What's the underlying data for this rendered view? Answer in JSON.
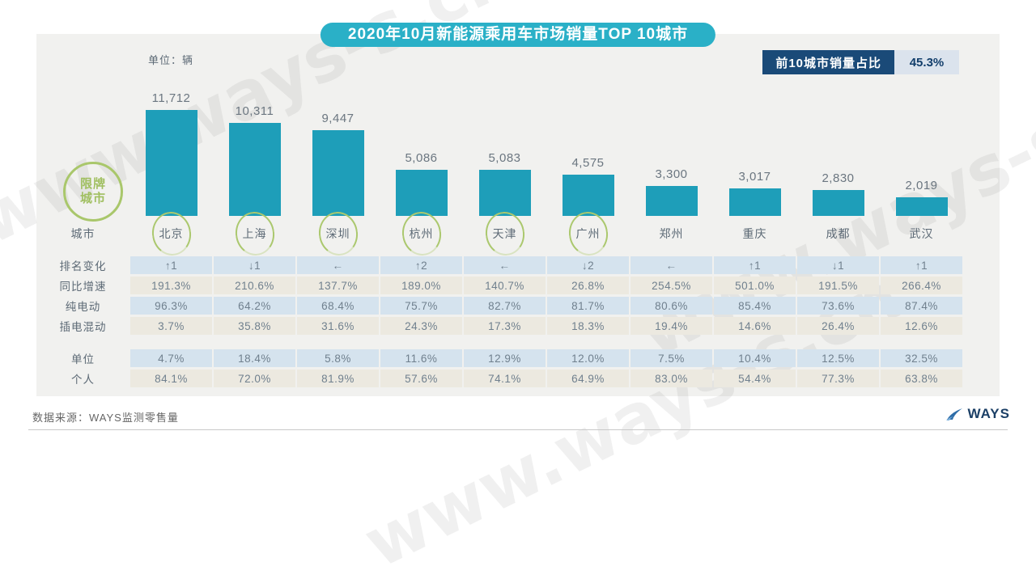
{
  "title": "2020年10月新能源乘用车市场销量TOP 10城市",
  "unit_label": "单位：辆",
  "share_badge": {
    "label": "前10城市销量占比",
    "value": "45.3%"
  },
  "restricted_badge": {
    "line1": "限牌",
    "line2": "城市"
  },
  "city_row_label": "城市",
  "watermark": "www.ways-s.cn",
  "footer": {
    "source": "数据来源：WAYS监测零售量",
    "logo_text": "WAYS"
  },
  "colors": {
    "bar": "#1e9eb9",
    "title_bg": "#2ab0c7",
    "badge_dark": "#1a4a78",
    "badge_light": "#dbe3ed",
    "row_blue": "#d5e3ee",
    "row_cream": "#ece9e0",
    "circle_green": "#a9c76b"
  },
  "chart_data": {
    "type": "bar",
    "title": "2020年10月新能源乘用车市场销量TOP 10城市",
    "unit": "辆",
    "categories": [
      "北京",
      "上海",
      "深圳",
      "杭州",
      "天津",
      "广州",
      "郑州",
      "重庆",
      "成都",
      "武汉"
    ],
    "values": [
      11712,
      10311,
      9447,
      5086,
      5083,
      4575,
      3300,
      3017,
      2830,
      2019
    ],
    "value_labels": [
      "11,712",
      "10,311",
      "9,447",
      "5,086",
      "5,083",
      "4,575",
      "3,300",
      "3,017",
      "2,830",
      "2,019"
    ],
    "restricted_cities": [
      "北京",
      "上海",
      "深圳",
      "杭州",
      "天津",
      "广州"
    ],
    "top10_share": "45.3%",
    "ylim": [
      0,
      12000
    ],
    "grid": false,
    "table_rows": [
      {
        "label": "排名变化",
        "tone": "blue",
        "gap_before": false,
        "values": [
          "↑1",
          "↓1",
          "←",
          "↑2",
          "←",
          "↓2",
          "←",
          "↑1",
          "↓1",
          "↑1"
        ]
      },
      {
        "label": "同比增速",
        "tone": "cream",
        "gap_before": false,
        "values": [
          "191.3%",
          "210.6%",
          "137.7%",
          "189.0%",
          "140.7%",
          "26.8%",
          "254.5%",
          "501.0%",
          "191.5%",
          "266.4%"
        ]
      },
      {
        "label": "纯电动",
        "tone": "blue",
        "gap_before": false,
        "values": [
          "96.3%",
          "64.2%",
          "68.4%",
          "75.7%",
          "82.7%",
          "81.7%",
          "80.6%",
          "85.4%",
          "73.6%",
          "87.4%"
        ]
      },
      {
        "label": "插电混动",
        "tone": "cream",
        "gap_before": false,
        "values": [
          "3.7%",
          "35.8%",
          "31.6%",
          "24.3%",
          "17.3%",
          "18.3%",
          "19.4%",
          "14.6%",
          "26.4%",
          "12.6%"
        ]
      },
      {
        "label": "单位",
        "tone": "blue",
        "gap_before": true,
        "values": [
          "4.7%",
          "18.4%",
          "5.8%",
          "11.6%",
          "12.9%",
          "12.0%",
          "7.5%",
          "10.4%",
          "12.5%",
          "32.5%"
        ]
      },
      {
        "label": "个人",
        "tone": "cream",
        "gap_before": false,
        "values": [
          "84.1%",
          "72.0%",
          "81.9%",
          "57.6%",
          "74.1%",
          "64.9%",
          "83.0%",
          "54.4%",
          "77.3%",
          "63.8%"
        ]
      }
    ]
  }
}
